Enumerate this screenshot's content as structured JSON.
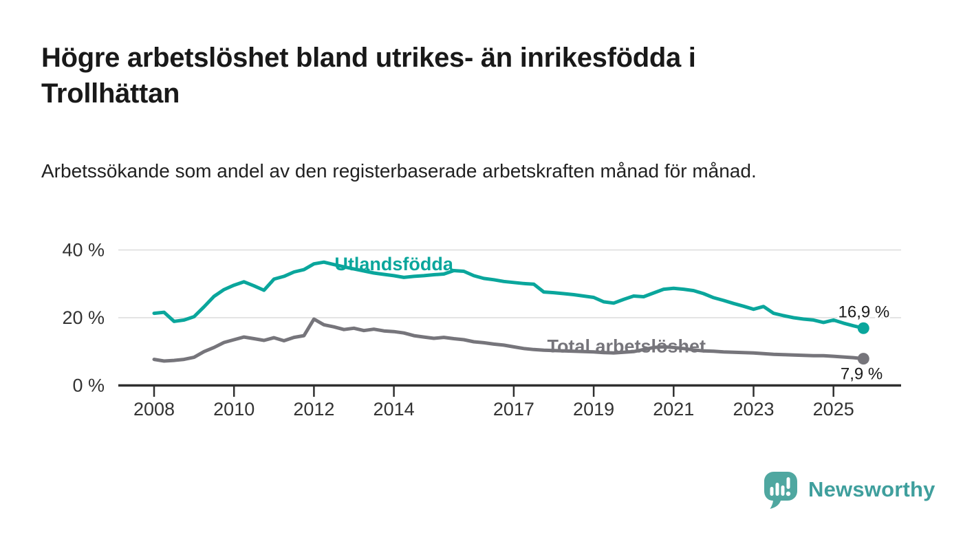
{
  "header": {
    "title": "Högre arbetslöshet bland utrikes- än inrikesfödda i Trollhättan",
    "subtitle": "Arbetssökande som andel av den registerbaserade arbetskraften månad för månad."
  },
  "footer": {
    "brand": "Newsworthy",
    "logo_icon": "speech-bubble-bar-chart-icon"
  },
  "colors": {
    "series_foreign_born": "#0aa69c",
    "series_total": "#76757b",
    "grid": "#dcdcdc",
    "axis": "#2f2f2f",
    "tick_label": "#333333",
    "value_label": "#1a1a1a",
    "title_text": "#191919",
    "brand_teal": "#4fa7a0",
    "brand_wordmark": "#3f9f9d",
    "background": "#ffffff"
  },
  "chart_data": {
    "type": "line",
    "title": "Högre arbetslöshet bland utrikes- än inrikesfödda i Trollhättan",
    "subtitle": "Arbetssökande som andel av den registerbaserade arbetskraften månad för månad.",
    "xlabel": "",
    "ylabel": "",
    "x_unit": "decimal year (monthly data, Jan 2008 – autumn 2025)",
    "y_unit": "percent of registered labour force",
    "xlim": [
      2007.1,
      2026.7
    ],
    "ylim": [
      0,
      42
    ],
    "grid": "horizontal",
    "legend_position": "inline-labels-on-lines",
    "yticks": [
      {
        "value": 0,
        "label": "0 %"
      },
      {
        "value": 20,
        "label": "20 %"
      },
      {
        "value": 40,
        "label": "40 %"
      }
    ],
    "xticks": [
      {
        "value": 2008,
        "label": "2008"
      },
      {
        "value": 2010,
        "label": "2010"
      },
      {
        "value": 2012,
        "label": "2012"
      },
      {
        "value": 2014,
        "label": "2014"
      },
      {
        "value": 2017,
        "label": "2017"
      },
      {
        "value": 2019,
        "label": "2019"
      },
      {
        "value": 2021,
        "label": "2021"
      },
      {
        "value": 2023,
        "label": "2023"
      },
      {
        "value": 2025,
        "label": "2025"
      }
    ],
    "x": [
      2008,
      2008.25,
      2008.5,
      2008.75,
      2009,
      2009.25,
      2009.5,
      2009.75,
      2010,
      2010.25,
      2010.5,
      2010.75,
      2011,
      2011.25,
      2011.5,
      2011.75,
      2012,
      2012.25,
      2012.5,
      2012.75,
      2013,
      2013.25,
      2013.5,
      2013.75,
      2014,
      2014.25,
      2014.5,
      2014.75,
      2015,
      2015.25,
      2015.5,
      2015.75,
      2016,
      2016.25,
      2016.5,
      2016.75,
      2017,
      2017.25,
      2017.5,
      2017.75,
      2018,
      2018.25,
      2018.5,
      2018.75,
      2019,
      2019.25,
      2019.5,
      2019.75,
      2020,
      2020.25,
      2020.5,
      2020.75,
      2021,
      2021.25,
      2021.5,
      2021.75,
      2022,
      2022.25,
      2022.5,
      2022.75,
      2023,
      2023.25,
      2023.5,
      2023.75,
      2024,
      2024.25,
      2024.5,
      2024.75,
      2025,
      2025.25,
      2025.5,
      2025.75
    ],
    "series": [
      {
        "name": "Utlandsfödda",
        "color": "#0aa69c",
        "end_value": 16.9,
        "end_label": "16,9 %",
        "label_anchor": {
          "x": 2014.0,
          "y": 34.0
        },
        "values": [
          21.3,
          21.6,
          18.9,
          19.3,
          20.3,
          23.2,
          26.3,
          28.3,
          29.6,
          30.6,
          29.4,
          28.1,
          31.4,
          32.2,
          33.5,
          34.2,
          35.9,
          36.4,
          35.7,
          35.0,
          34.4,
          33.8,
          33.2,
          32.8,
          32.4,
          31.9,
          32.2,
          32.4,
          32.7,
          32.9,
          33.9,
          33.7,
          32.4,
          31.6,
          31.2,
          30.7,
          30.4,
          30.1,
          29.9,
          27.6,
          27.4,
          27.1,
          26.8,
          26.4,
          26.0,
          24.7,
          24.3,
          25.4,
          26.4,
          26.2,
          27.3,
          28.4,
          28.7,
          28.4,
          28.0,
          27.1,
          25.9,
          25.1,
          24.2,
          23.4,
          22.5,
          23.3,
          21.3,
          20.6,
          20.0,
          19.6,
          19.3,
          18.6,
          19.3,
          18.4,
          17.6,
          16.9
        ]
      },
      {
        "name": "Total arbetslöshet",
        "color": "#76757b",
        "end_value": 7.9,
        "end_label": "7,9 %",
        "label_anchor": {
          "x": 2019.82,
          "y": 9.7
        },
        "values": [
          7.7,
          7.2,
          7.4,
          7.7,
          8.3,
          10.0,
          11.2,
          12.7,
          13.5,
          14.3,
          13.8,
          13.3,
          14.1,
          13.2,
          14.2,
          14.7,
          19.6,
          17.9,
          17.3,
          16.5,
          16.9,
          16.2,
          16.6,
          16.1,
          15.9,
          15.5,
          14.7,
          14.3,
          13.9,
          14.2,
          13.8,
          13.5,
          12.9,
          12.6,
          12.2,
          11.9,
          11.4,
          10.9,
          10.6,
          10.4,
          10.3,
          10.2,
          10.1,
          10.0,
          9.9,
          9.7,
          9.6,
          9.8,
          10.0,
          10.6,
          11.2,
          11.4,
          11.2,
          10.9,
          10.5,
          10.2,
          10.1,
          9.9,
          9.8,
          9.7,
          9.6,
          9.4,
          9.2,
          9.1,
          9.0,
          8.9,
          8.8,
          8.8,
          8.6,
          8.4,
          8.2,
          7.9
        ]
      }
    ]
  }
}
